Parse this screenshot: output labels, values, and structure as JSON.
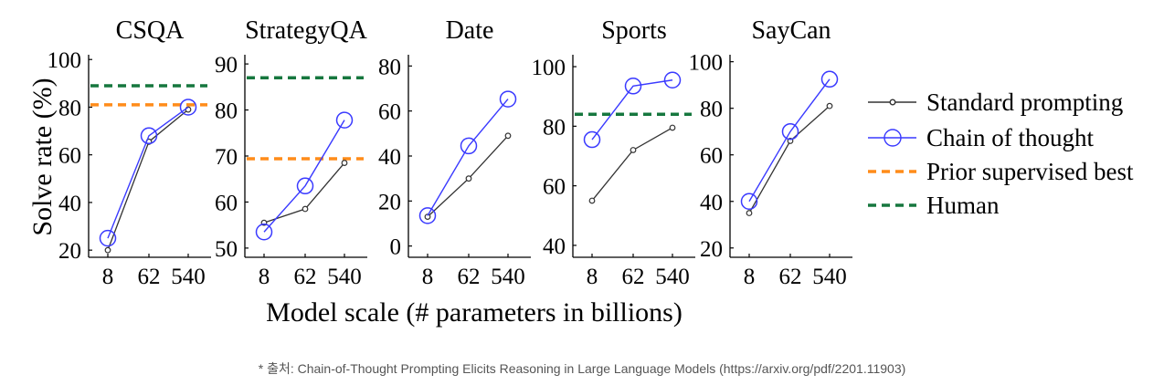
{
  "figure": {
    "ylabel": "Solve rate (%)",
    "xlabel": "Model scale (# parameters in billions)",
    "caption": "* 출처: Chain-of-Thought Prompting Elicits Reasoning in Large Language Models (https://arxiv.org/pdf/2201.11903)"
  },
  "legend": {
    "placement": "right",
    "items": [
      {
        "label": "Standard prompting",
        "color": "#333333",
        "style": "line-small-marker"
      },
      {
        "label": "Chain of thought",
        "color": "#3a3aff",
        "style": "line-circle-marker"
      },
      {
        "label": "Prior supervised best",
        "color": "#ff8c1a",
        "style": "dashed"
      },
      {
        "label": "Human",
        "color": "#16773e",
        "style": "dashed"
      }
    ]
  },
  "chart_data": [
    {
      "type": "line",
      "title": "CSQA",
      "categories": [
        "8",
        "62",
        "540"
      ],
      "ylim": [
        17,
        102
      ],
      "yticks": [
        20,
        40,
        60,
        80,
        100
      ],
      "series": [
        {
          "name": "Standard prompting",
          "values": [
            20,
            65.5,
            79
          ]
        },
        {
          "name": "Chain of thought",
          "values": [
            25,
            68,
            80
          ]
        }
      ],
      "prior_supervised_best": 81,
      "human": 89
    },
    {
      "type": "line",
      "title": "StrategyQA",
      "categories": [
        "8",
        "62",
        "540"
      ],
      "ylim": [
        48,
        92
      ],
      "yticks": [
        50,
        60,
        70,
        80,
        90
      ],
      "series": [
        {
          "name": "Standard prompting",
          "values": [
            55.5,
            58.5,
            68.5
          ]
        },
        {
          "name": "Chain of thought",
          "values": [
            53.5,
            63.5,
            77.8
          ]
        }
      ],
      "prior_supervised_best": 69.4,
      "human": 87
    },
    {
      "type": "line",
      "title": "Date",
      "categories": [
        "8",
        "62",
        "540"
      ],
      "ylim": [
        -5,
        85
      ],
      "yticks": [
        0,
        20,
        40,
        60,
        80
      ],
      "series": [
        {
          "name": "Standard prompting",
          "values": [
            13,
            30,
            49
          ]
        },
        {
          "name": "Chain of thought",
          "values": [
            13.5,
            44.5,
            65.3
          ]
        }
      ]
    },
    {
      "type": "line",
      "title": "Sports",
      "categories": [
        "8",
        "62",
        "540"
      ],
      "ylim": [
        36,
        104
      ],
      "yticks": [
        40,
        60,
        80,
        100
      ],
      "series": [
        {
          "name": "Standard prompting",
          "values": [
            55,
            72,
            79.5
          ]
        },
        {
          "name": "Chain of thought",
          "values": [
            75.5,
            93.5,
            95.5
          ]
        }
      ],
      "human": 84
    },
    {
      "type": "line",
      "title": "SayCan",
      "categories": [
        "8",
        "62",
        "540"
      ],
      "ylim": [
        16,
        103
      ],
      "yticks": [
        20,
        40,
        60,
        80,
        100
      ],
      "series": [
        {
          "name": "Standard prompting",
          "values": [
            35,
            66,
            81
          ]
        },
        {
          "name": "Chain of thought",
          "values": [
            40,
            70,
            92.5
          ]
        }
      ]
    }
  ]
}
